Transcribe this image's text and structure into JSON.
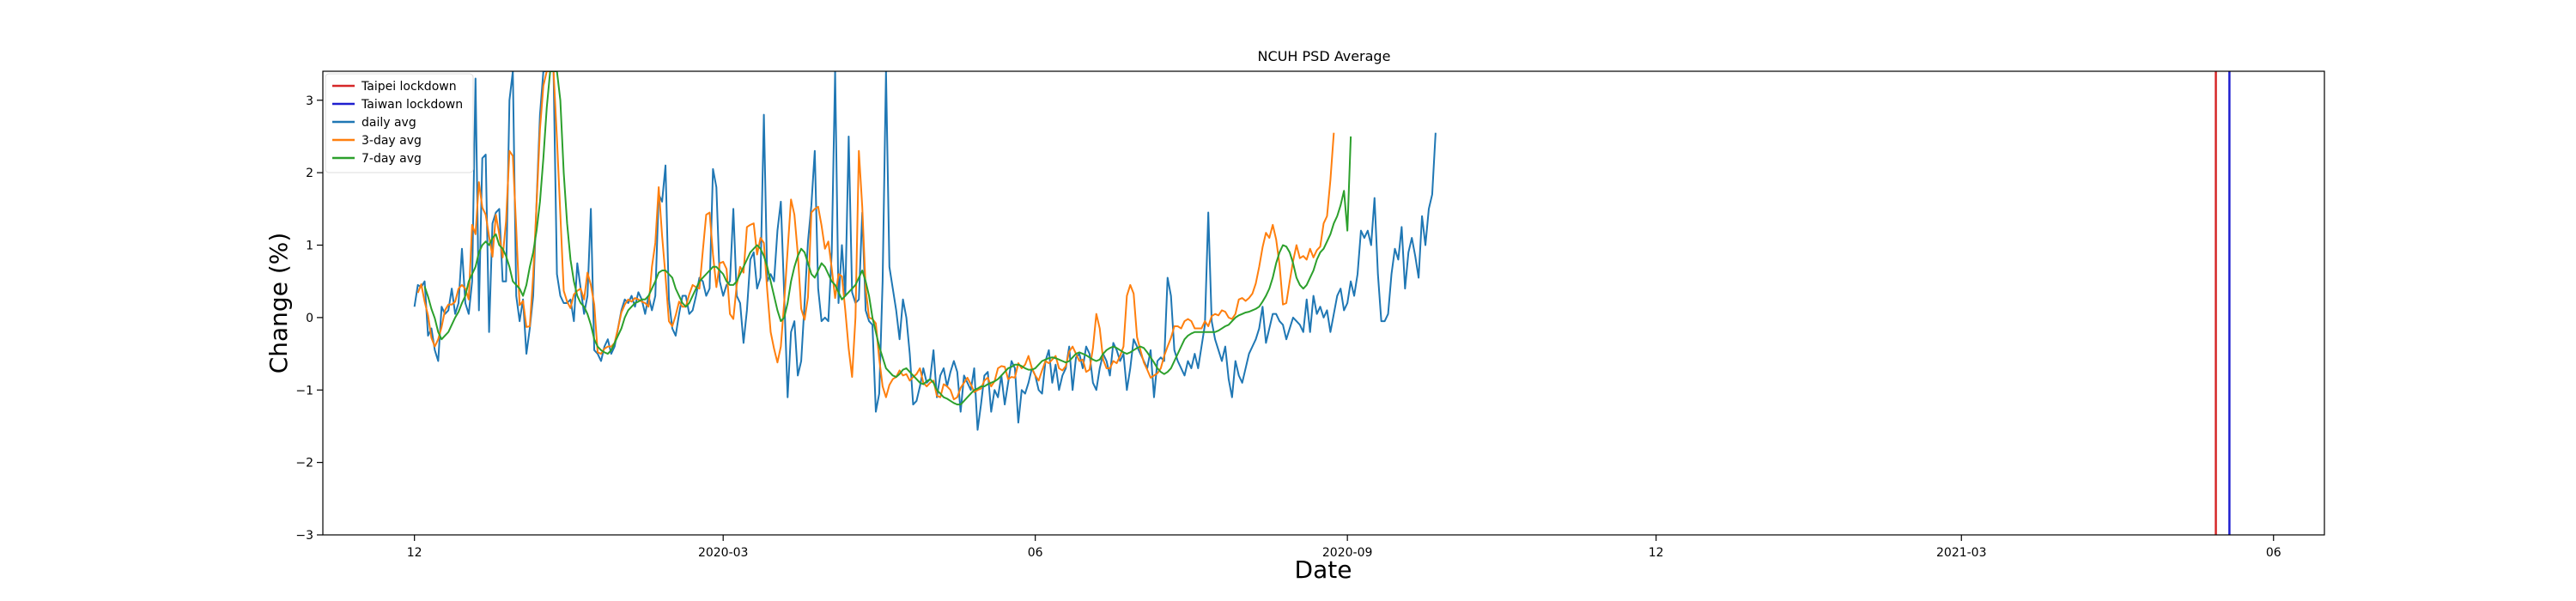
{
  "chart_data": {
    "type": "line",
    "title": "NCUH PSD Average",
    "xlabel": "Date",
    "ylabel": "Change (%)",
    "x_ticks": [
      "12",
      "2020-03",
      "06",
      "2020-09",
      "12",
      "2021-03",
      "06"
    ],
    "x_tick_dates": [
      "2019-12-01",
      "2020-03-01",
      "2020-06-01",
      "2020-09-01",
      "2020-12-01",
      "2021-03-01",
      "2021-06-01"
    ],
    "xlim": [
      "2019-11-04",
      "2021-06-16"
    ],
    "y_ticks": [
      -3,
      -2,
      -1,
      0,
      1,
      2,
      3
    ],
    "ylim": [
      -3,
      3.4
    ],
    "grid": false,
    "legend_position": "top-left",
    "lockdown_lines": [
      {
        "name": "Taipei lockdown",
        "date": "2021-05-15",
        "color": "#d62728"
      },
      {
        "name": "Taiwan lockdown",
        "date": "2021-05-19",
        "color": "#1f1fcf"
      }
    ],
    "series": [
      {
        "name": "daily avg",
        "color": "#1f77b4",
        "start_date": "2019-12-01",
        "values": [
          0.15,
          0.45,
          0.42,
          0.5,
          -0.25,
          -0.15,
          -0.45,
          -0.6,
          0.15,
          0.05,
          0.1,
          0.4,
          0.05,
          0.2,
          0.95,
          0.2,
          0.05,
          0.5,
          3.3,
          0.1,
          2.2,
          2.25,
          -0.2,
          1.3,
          1.45,
          1.5,
          0.5,
          0.5,
          3.0,
          3.4,
          0.3,
          -0.05,
          0.25,
          -0.5,
          -0.15,
          0.3,
          1.6,
          2.8,
          3.4,
          3.4,
          3.4,
          3.4,
          0.6,
          0.3,
          0.2,
          0.2,
          0.25,
          -0.05,
          0.75,
          0.4,
          0.05,
          0.3,
          1.5,
          -0.45,
          -0.5,
          -0.6,
          -0.4,
          -0.3,
          -0.5,
          -0.4,
          -0.15,
          0.1,
          0.25,
          0.2,
          0.3,
          0.15,
          0.35,
          0.25,
          0.05,
          0.3,
          0.1,
          0.3,
          1.7,
          1.6,
          2.1,
          0.25,
          -0.15,
          -0.25,
          0.05,
          0.3,
          0.3,
          0.05,
          0.1,
          0.3,
          0.55,
          0.5,
          0.3,
          0.4,
          2.05,
          1.8,
          0.5,
          0.3,
          0.45,
          0.5,
          1.5,
          0.3,
          0.2,
          -0.35,
          0.1,
          0.8,
          0.9,
          0.4,
          0.55,
          2.8,
          0.5,
          0.6,
          0.5,
          1.2,
          1.6,
          0.3,
          -1.1,
          -0.2,
          -0.05,
          -0.8,
          -0.6,
          0.2,
          1.05,
          1.55,
          2.3,
          0.4,
          -0.05,
          0.0,
          -0.05,
          0.9,
          3.4,
          0.2,
          1.0,
          0.3,
          2.5,
          0.35,
          0.2,
          0.25,
          1.45,
          0.1,
          -0.05,
          -0.1,
          -1.3,
          -1.05,
          0.5,
          3.4,
          0.7,
          0.4,
          0.1,
          -0.3,
          0.25,
          0.0,
          -0.5,
          -1.2,
          -1.15,
          -0.95,
          -0.7,
          -0.9,
          -0.85,
          -0.45,
          -1.1,
          -0.8,
          -0.7,
          -0.95,
          -0.75,
          -0.6,
          -0.75,
          -1.3,
          -0.8,
          -0.9,
          -1.0,
          -0.7,
          -1.55,
          -1.2,
          -0.8,
          -0.75,
          -1.3,
          -1.0,
          -1.1,
          -0.8,
          -1.2,
          -0.9,
          -0.6,
          -0.7,
          -1.45,
          -1.0,
          -1.05,
          -0.9,
          -0.7,
          -0.8,
          -1.0,
          -1.05,
          -0.6,
          -0.45,
          -0.9,
          -0.65,
          -1.0,
          -0.8,
          -0.7,
          -0.4,
          -1.0,
          -0.55,
          -0.5,
          -0.7,
          -0.4,
          -0.5,
          -0.9,
          -1.0,
          -0.7,
          -0.5,
          -0.6,
          -0.8,
          -0.35,
          -0.45,
          -0.6,
          -0.5,
          -1.0,
          -0.7,
          -0.3,
          -0.4,
          -0.5,
          -0.6,
          -0.7,
          -0.45,
          -1.1,
          -0.6,
          -0.55,
          -0.6,
          0.55,
          0.3,
          -0.45,
          -0.6,
          -0.7,
          -0.8,
          -0.6,
          -0.7,
          -0.5,
          -0.7,
          -0.4,
          -0.1,
          1.45,
          -0.05,
          -0.3,
          -0.45,
          -0.6,
          -0.4,
          -0.85,
          -1.1,
          -0.6,
          -0.8,
          -0.9,
          -0.7,
          -0.5,
          -0.4,
          -0.3,
          -0.15,
          0.15,
          -0.35,
          -0.15,
          0.05,
          0.05,
          -0.05,
          -0.1,
          -0.3,
          -0.15,
          0.0,
          -0.05,
          -0.1,
          -0.2,
          0.25,
          -0.2,
          0.3,
          0.05,
          0.15,
          0.0,
          0.1,
          -0.2,
          0.05,
          0.3,
          0.4,
          0.1,
          0.2,
          0.5,
          0.3,
          0.6,
          1.2,
          1.1,
          1.2,
          1.0,
          1.65,
          0.6,
          -0.05,
          -0.05,
          0.05,
          0.6,
          0.95,
          0.8,
          1.25,
          0.4,
          0.9,
          1.1,
          0.85,
          0.55,
          1.4,
          1.0,
          1.5,
          1.7,
          2.55
        ]
      },
      {
        "name": "3-day avg",
        "color": "#ff7f0e",
        "start_date": "2019-12-02",
        "values": [
          0.34,
          0.46,
          0.22,
          0.03,
          -0.28,
          -0.4,
          -0.3,
          -0.13,
          0.1,
          0.18,
          0.18,
          0.22,
          0.4,
          0.45,
          0.4,
          0.25,
          1.28,
          1.15,
          1.87,
          1.52,
          1.42,
          1.12,
          0.84,
          1.42,
          1.15,
          0.83,
          1.33,
          2.3,
          2.23,
          1.23,
          0.17,
          0.23,
          -0.13,
          -0.12,
          0.58,
          1.57,
          2.6,
          3.2,
          3.4,
          3.4,
          3.4,
          2.47,
          1.43,
          0.37,
          0.22,
          0.13,
          0.32,
          0.37,
          0.4,
          0.25,
          0.62,
          0.45,
          0.18,
          -0.48,
          -0.5,
          -0.43,
          -0.4,
          -0.4,
          -0.35,
          -0.15,
          0.07,
          0.18,
          0.25,
          0.22,
          0.27,
          0.25,
          0.22,
          0.2,
          0.15,
          0.7,
          1.03,
          1.8,
          1.13,
          0.57,
          -0.05,
          -0.12,
          0.03,
          0.22,
          0.15,
          0.15,
          0.32,
          0.45,
          0.42,
          0.4,
          0.92,
          1.42,
          1.45,
          0.87,
          0.42,
          0.75,
          0.77,
          0.67,
          0.05,
          -0.02,
          0.45,
          0.7,
          0.62,
          1.25,
          1.28,
          1.3,
          0.87,
          1.1,
          1.03,
          0.37,
          -0.2,
          -0.43,
          -0.62,
          -0.4,
          0.22,
          0.93,
          1.63,
          1.42,
          0.88,
          0.12,
          -0.03,
          0.28,
          1.45,
          1.5,
          1.53,
          1.27,
          0.95,
          1.05,
          0.68,
          0.27,
          0.6,
          0.57,
          0.1,
          -0.43,
          -0.82,
          0.0,
          2.3,
          1.53,
          0.4,
          0.0,
          -0.02,
          -0.08,
          -0.57,
          -0.95,
          -1.1,
          -0.93,
          -0.85,
          -0.82,
          -0.73,
          -0.8,
          -0.78,
          -0.87,
          -0.82,
          -0.78,
          -0.7,
          -0.9,
          -0.95,
          -0.9,
          -0.87,
          -1.08,
          -1.1,
          -0.92,
          -0.95,
          -1.0,
          -1.13,
          -1.1,
          -0.97,
          -0.9,
          -0.83,
          -0.92,
          -1.03,
          -1.0,
          -0.98,
          -0.87,
          -0.83,
          -0.95,
          -0.88,
          -0.7,
          -0.67,
          -0.68,
          -0.85,
          -0.82,
          -0.83,
          -0.63,
          -0.7,
          -0.65,
          -0.53,
          -0.7,
          -0.8,
          -0.87,
          -0.73,
          -0.6,
          -0.63,
          -0.58,
          -0.53,
          -0.7,
          -0.73,
          -0.67,
          -0.47,
          -0.4,
          -0.5,
          -0.6,
          -0.58,
          -0.75,
          -0.72,
          -0.42,
          0.05,
          -0.15,
          -0.58,
          -0.7,
          -0.7,
          -0.6,
          -0.63,
          -0.53,
          -0.4,
          0.3,
          0.45,
          0.33,
          -0.27,
          -0.45,
          -0.62,
          -0.72,
          -0.83,
          -0.8,
          -0.77,
          -0.7,
          -0.53,
          -0.4,
          -0.28,
          -0.12,
          -0.12,
          -0.15,
          -0.05,
          -0.02,
          -0.05,
          -0.15,
          -0.15,
          -0.15,
          -0.05,
          -0.12,
          0.02,
          0.05,
          0.03,
          0.1,
          0.08,
          0.0,
          -0.02,
          0.05,
          0.25,
          0.27,
          0.23,
          0.27,
          0.33,
          0.47,
          0.7,
          0.97,
          1.17,
          1.1,
          1.28,
          1.08,
          0.73,
          0.18,
          0.2,
          0.5,
          0.78,
          1.0,
          0.82,
          0.85,
          0.8,
          0.95,
          0.83,
          0.93,
          0.98,
          1.3,
          1.4,
          1.9,
          2.55
        ]
      },
      {
        "name": "7-day avg",
        "color": "#2ca02c",
        "start_date": "2019-12-04",
        "values": [
          0.43,
          0.29,
          0.12,
          -0.01,
          -0.2,
          -0.3,
          -0.25,
          -0.2,
          -0.1,
          0.0,
          0.08,
          0.2,
          0.3,
          0.5,
          0.6,
          0.7,
          0.9,
          1.0,
          1.05,
          1.0,
          1.1,
          1.15,
          1.0,
          0.95,
          0.85,
          0.7,
          0.5,
          0.45,
          0.4,
          0.3,
          0.45,
          0.7,
          0.9,
          1.2,
          1.6,
          2.2,
          2.9,
          3.4,
          3.4,
          3.4,
          3.0,
          2.0,
          1.3,
          0.8,
          0.5,
          0.3,
          0.2,
          0.15,
          0.05,
          -0.1,
          -0.3,
          -0.4,
          -0.45,
          -0.48,
          -0.5,
          -0.45,
          -0.35,
          -0.25,
          -0.15,
          0.0,
          0.1,
          0.15,
          0.2,
          0.22,
          0.25,
          0.25,
          0.3,
          0.4,
          0.5,
          0.62,
          0.65,
          0.65,
          0.6,
          0.55,
          0.4,
          0.3,
          0.2,
          0.15,
          0.2,
          0.3,
          0.4,
          0.5,
          0.55,
          0.6,
          0.65,
          0.7,
          0.7,
          0.65,
          0.6,
          0.5,
          0.45,
          0.45,
          0.5,
          0.6,
          0.7,
          0.8,
          0.9,
          0.95,
          1.0,
          0.95,
          0.85,
          0.7,
          0.5,
          0.3,
          0.1,
          -0.05,
          0.0,
          0.2,
          0.5,
          0.7,
          0.85,
          0.95,
          0.9,
          0.75,
          0.6,
          0.55,
          0.65,
          0.75,
          0.7,
          0.6,
          0.5,
          0.45,
          0.35,
          0.25,
          0.3,
          0.35,
          0.4,
          0.45,
          0.55,
          0.65,
          0.5,
          0.3,
          0.0,
          -0.2,
          -0.4,
          -0.55,
          -0.7,
          -0.75,
          -0.8,
          -0.82,
          -0.78,
          -0.72,
          -0.7,
          -0.75,
          -0.8,
          -0.85,
          -0.9,
          -0.92,
          -0.88,
          -0.85,
          -0.9,
          -1.0,
          -1.05,
          -1.1,
          -1.12,
          -1.15,
          -1.18,
          -1.2,
          -1.2,
          -1.15,
          -1.1,
          -1.05,
          -1.0,
          -0.98,
          -0.95,
          -0.95,
          -0.92,
          -0.9,
          -0.88,
          -0.85,
          -0.8,
          -0.75,
          -0.7,
          -0.68,
          -0.65,
          -0.65,
          -0.67,
          -0.7,
          -0.72,
          -0.72,
          -0.7,
          -0.65,
          -0.6,
          -0.58,
          -0.56,
          -0.55,
          -0.56,
          -0.58,
          -0.6,
          -0.62,
          -0.6,
          -0.55,
          -0.5,
          -0.48,
          -0.5,
          -0.52,
          -0.55,
          -0.58,
          -0.6,
          -0.58,
          -0.5,
          -0.45,
          -0.42,
          -0.4,
          -0.42,
          -0.45,
          -0.48,
          -0.5,
          -0.48,
          -0.45,
          -0.42,
          -0.4,
          -0.42,
          -0.48,
          -0.55,
          -0.62,
          -0.7,
          -0.75,
          -0.78,
          -0.75,
          -0.7,
          -0.6,
          -0.5,
          -0.4,
          -0.3,
          -0.25,
          -0.22,
          -0.2,
          -0.2,
          -0.2,
          -0.2,
          -0.2,
          -0.2,
          -0.2,
          -0.18,
          -0.15,
          -0.12,
          -0.1,
          -0.05,
          0.0,
          0.03,
          0.05,
          0.07,
          0.08,
          0.1,
          0.12,
          0.15,
          0.22,
          0.3,
          0.4,
          0.55,
          0.75,
          0.9,
          1.0,
          0.98,
          0.9,
          0.75,
          0.55,
          0.45,
          0.4,
          0.45,
          0.55,
          0.65,
          0.8,
          0.9,
          0.95,
          1.05,
          1.15,
          1.3,
          1.4,
          1.55,
          1.75,
          1.2,
          2.5
        ]
      }
    ]
  }
}
